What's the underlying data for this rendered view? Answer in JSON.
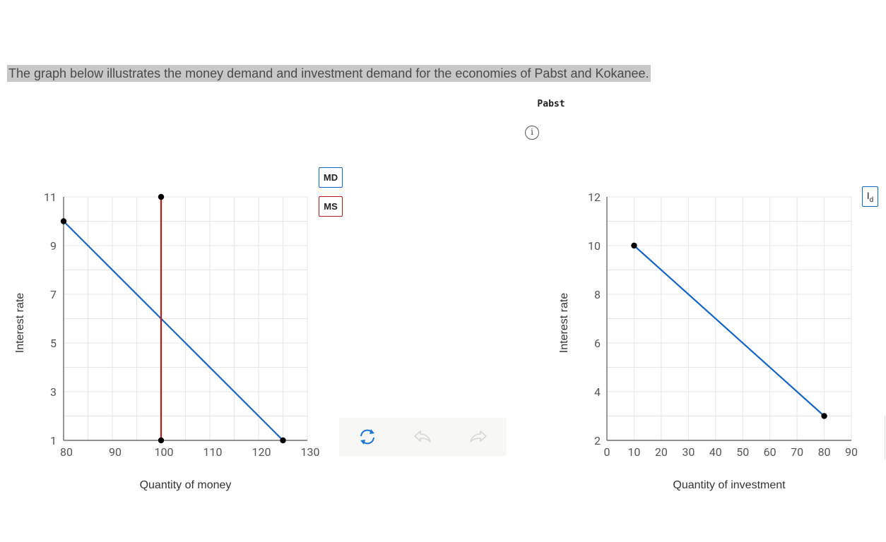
{
  "intro_text": "The graph below illustrates the money demand and investment demand for the economies of Pabst and Kokanee.",
  "panel_title": "Pabst",
  "info_icon": "info-circle-icon",
  "legend": {
    "md_label": "MD",
    "ms_label": "MS",
    "id_main": "I",
    "id_sub": "d"
  },
  "colors": {
    "md": "#1565c0",
    "ms": "#b71c1c",
    "grid": "#e6e6e6",
    "axis": "#555555",
    "point": "#000000"
  },
  "toolbar": {
    "reset_icon": "reset-icon",
    "undo_icon": "undo-icon",
    "redo_icon": "redo-icon"
  },
  "chart_data": [
    {
      "type": "line",
      "xlabel": "Quantity of money",
      "ylabel": "Interest rate",
      "xlim": [
        80,
        130
      ],
      "ylim": [
        1,
        11
      ],
      "xticks": [
        80,
        90,
        100,
        110,
        120,
        130
      ],
      "yticks": [
        1,
        3,
        5,
        7,
        9,
        11
      ],
      "grid": true,
      "series": [
        {
          "name": "MD",
          "color": "#1565c0",
          "points": [
            [
              80,
              10
            ],
            [
              125,
              1
            ]
          ]
        },
        {
          "name": "MS",
          "color": "#b71c1c",
          "points": [
            [
              100,
              1
            ],
            [
              100,
              11
            ]
          ]
        }
      ]
    },
    {
      "type": "line",
      "xlabel": "Quantity of investment",
      "ylabel": "Interest rate",
      "xlim": [
        0,
        90
      ],
      "ylim": [
        2,
        12
      ],
      "xticks": [
        0,
        10,
        20,
        30,
        40,
        50,
        60,
        70,
        80,
        90
      ],
      "yticks": [
        2,
        4,
        6,
        8,
        10,
        12
      ],
      "grid": true,
      "series": [
        {
          "name": "Id",
          "color": "#1565c0",
          "points": [
            [
              10,
              10
            ],
            [
              80,
              3
            ]
          ]
        }
      ]
    }
  ]
}
